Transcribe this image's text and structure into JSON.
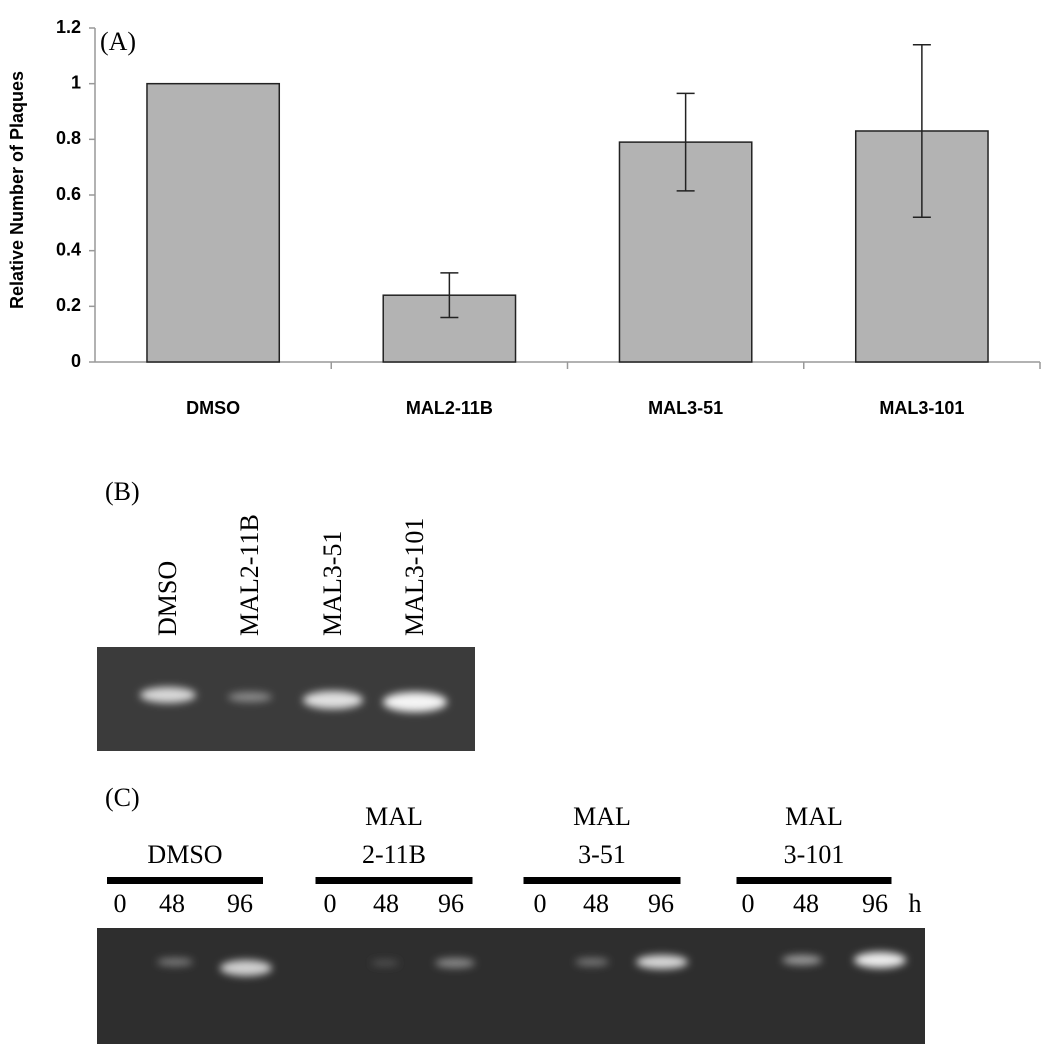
{
  "chart_data": {
    "type": "bar",
    "panel_label": "(A)",
    "ylabel": "Relative Number of Plaques",
    "categories": [
      "DMSO",
      "MAL2-11B",
      "MAL3-51",
      "MAL3-101"
    ],
    "values": [
      1,
      0.24,
      0.79,
      0.83
    ],
    "errors": [
      null,
      0.08,
      0.175,
      0.31
    ],
    "color": "#b3b3b3",
    "ylim": [
      0,
      1.2
    ],
    "yticks": [
      0,
      0.2,
      0.4,
      0.6,
      0.8,
      1,
      1.2
    ]
  },
  "panel_b": {
    "panel_label": "(B)",
    "lanes": [
      "DMSO",
      "MAL2-11B",
      "MAL3-51",
      "MAL3-101"
    ]
  },
  "panel_c": {
    "panel_label": "(C)",
    "groups": [
      {
        "lines": [
          "DMSO"
        ]
      },
      {
        "lines": [
          "MAL",
          "2-11B"
        ]
      },
      {
        "lines": [
          "MAL",
          "3-51"
        ]
      },
      {
        "lines": [
          "MAL",
          "3-101"
        ]
      }
    ],
    "times": [
      0,
      48,
      96
    ],
    "time_unit": "h"
  }
}
